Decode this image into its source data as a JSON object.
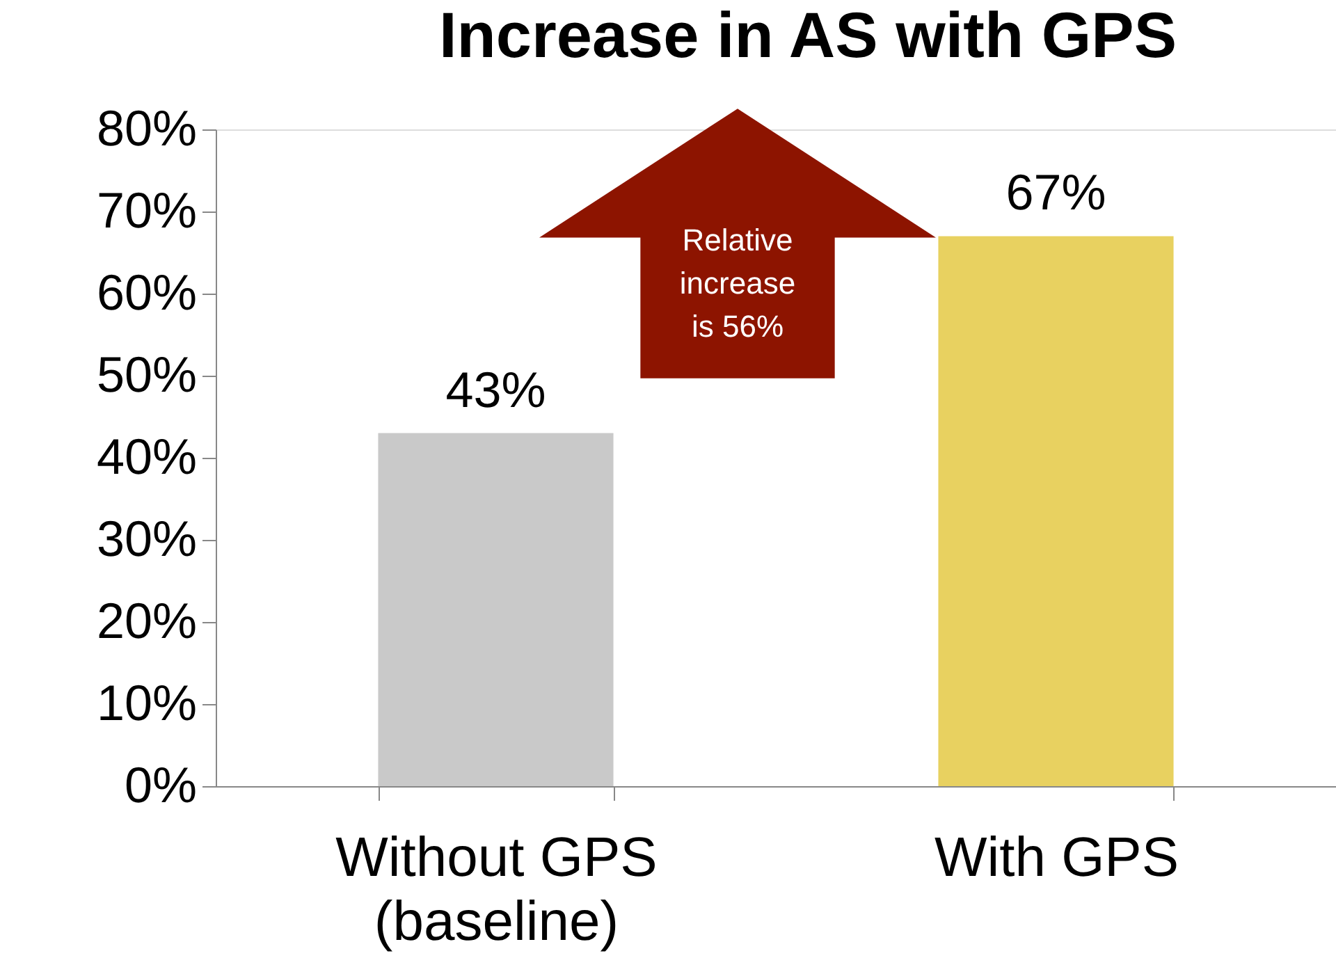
{
  "chart_data": {
    "type": "bar",
    "title": "Increase in AS with GPS",
    "categories": [
      "Without GPS\n(baseline)",
      "With GPS"
    ],
    "values": [
      43,
      67
    ],
    "colors": [
      "#c9c9c9",
      "#e8d160"
    ],
    "data_labels": true,
    "value_labels": [
      "43%",
      "67%"
    ],
    "ylim": [
      0,
      80
    ],
    "yticks": [
      {
        "value": 0,
        "label": "0%"
      },
      {
        "value": 10,
        "label": "10%"
      },
      {
        "value": 20,
        "label": "20%"
      },
      {
        "value": 30,
        "label": "30%"
      },
      {
        "value": 40,
        "label": "40%"
      },
      {
        "value": 50,
        "label": "50%"
      },
      {
        "value": 60,
        "label": "60%"
      },
      {
        "value": 70,
        "label": "70%"
      },
      {
        "value": 80,
        "label": "80%"
      }
    ],
    "grid": false,
    "annotations": [
      "Relative\nincrease\nis 56%"
    ]
  }
}
